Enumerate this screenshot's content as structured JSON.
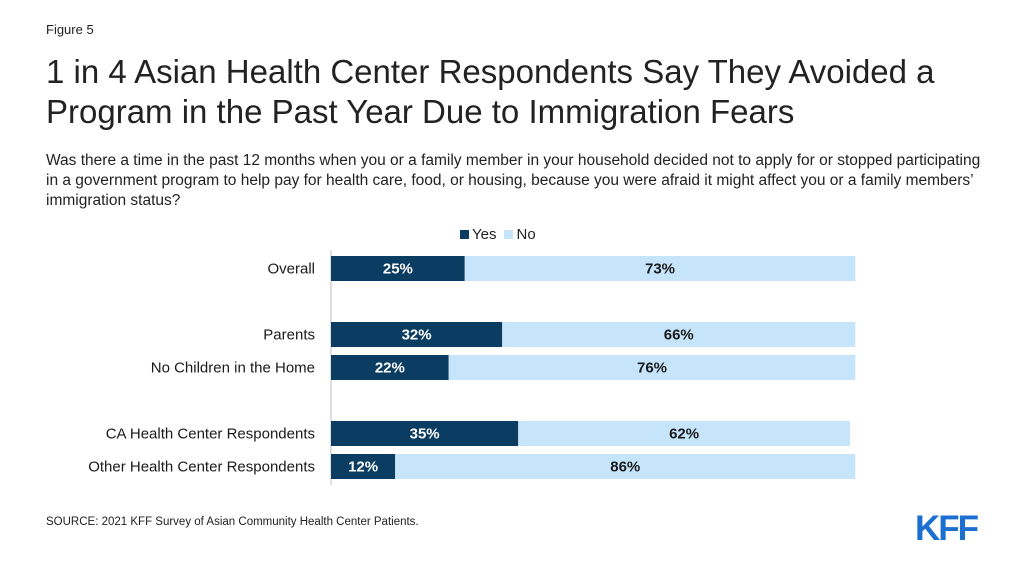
{
  "figure_label": "Figure 5",
  "title": "1 in 4 Asian Health Center Respondents Say They Avoided a Program in the Past Year Due to Immigration Fears",
  "subtitle": "Was there a time in the past 12 months when you or a family member in your household decided not to apply for or stopped participating in a government program to help pay for health care, food, or housing, because you were afraid it might affect you or a family members’ immigration status?",
  "source": "SOURCE: 2021 KFF Survey of Asian Community Health Center Patients.",
  "logo_text": "KFF",
  "colors": {
    "yes": "#0b3c61",
    "no": "#c6e5fb",
    "logo": "#1b6fd1"
  },
  "chart_data": {
    "type": "bar",
    "orientation": "horizontal",
    "stacked": true,
    "categories": [
      "Overall",
      "Parents",
      "No Children in the Home",
      "CA Health Center Respondents",
      "Other Health Center Respondents"
    ],
    "groups": [
      [
        0
      ],
      [
        1,
        2
      ],
      [
        3,
        4
      ]
    ],
    "series": [
      {
        "name": "Yes",
        "values": [
          25,
          32,
          22,
          35,
          12
        ],
        "labels": [
          "25%",
          "32%",
          "22%",
          "35%",
          "12%"
        ]
      },
      {
        "name": "No",
        "values": [
          73,
          66,
          76,
          62,
          86
        ],
        "labels": [
          "73%",
          "66%",
          "76%",
          "62%",
          "86%"
        ]
      }
    ],
    "xlim": [
      0,
      100
    ],
    "legend": "top",
    "grid": false
  }
}
